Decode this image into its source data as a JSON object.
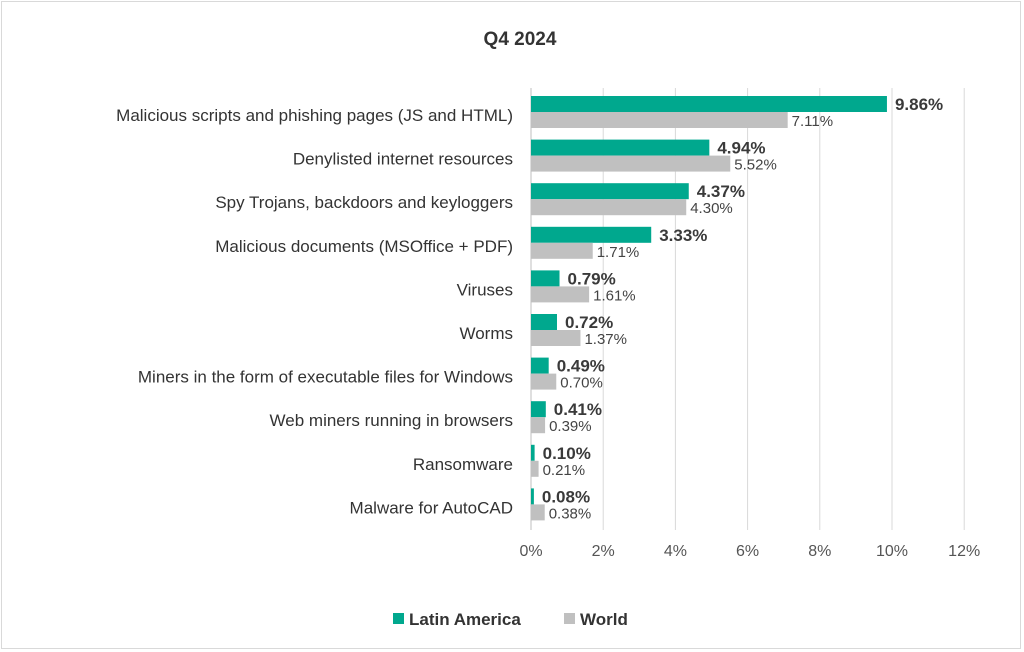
{
  "chart_data": {
    "type": "bar",
    "orientation": "horizontal",
    "title": "Q4 2024",
    "xlabel": "",
    "ylabel": "",
    "xlim": [
      0,
      12
    ],
    "x_ticks": [
      "0%",
      "2%",
      "4%",
      "6%",
      "8%",
      "10%",
      "12%"
    ],
    "grid": "vertical",
    "legend_position": "bottom",
    "categories": [
      "Malicious scripts and phishing pages (JS and HTML)",
      "Denylisted internet resources",
      "Spy Trojans, backdoors and keyloggers",
      "Malicious documents (MSOffice + PDF)",
      "Viruses",
      "Worms",
      "Miners in the form of executable files for Windows",
      "Web miners running in browsers",
      "Ransomware",
      "Malware for AutoCAD"
    ],
    "series": [
      {
        "name": "Latin America",
        "color": "#00a88e",
        "values": [
          9.86,
          4.94,
          4.37,
          3.33,
          0.79,
          0.72,
          0.49,
          0.41,
          0.1,
          0.08
        ],
        "labels": [
          "9.86%",
          "4.94%",
          "4.37%",
          "3.33%",
          "0.79%",
          "0.72%",
          "0.49%",
          "0.41%",
          "0.10%",
          "0.08%"
        ]
      },
      {
        "name": "World",
        "color": "#c0c0c0",
        "values": [
          7.11,
          5.52,
          4.3,
          1.71,
          1.61,
          1.37,
          0.7,
          0.39,
          0.21,
          0.38
        ],
        "labels": [
          "7.11%",
          "5.52%",
          "4.30%",
          "1.71%",
          "1.61%",
          "1.37%",
          "0.70%",
          "0.39%",
          "0.21%",
          "0.38%"
        ]
      }
    ]
  }
}
